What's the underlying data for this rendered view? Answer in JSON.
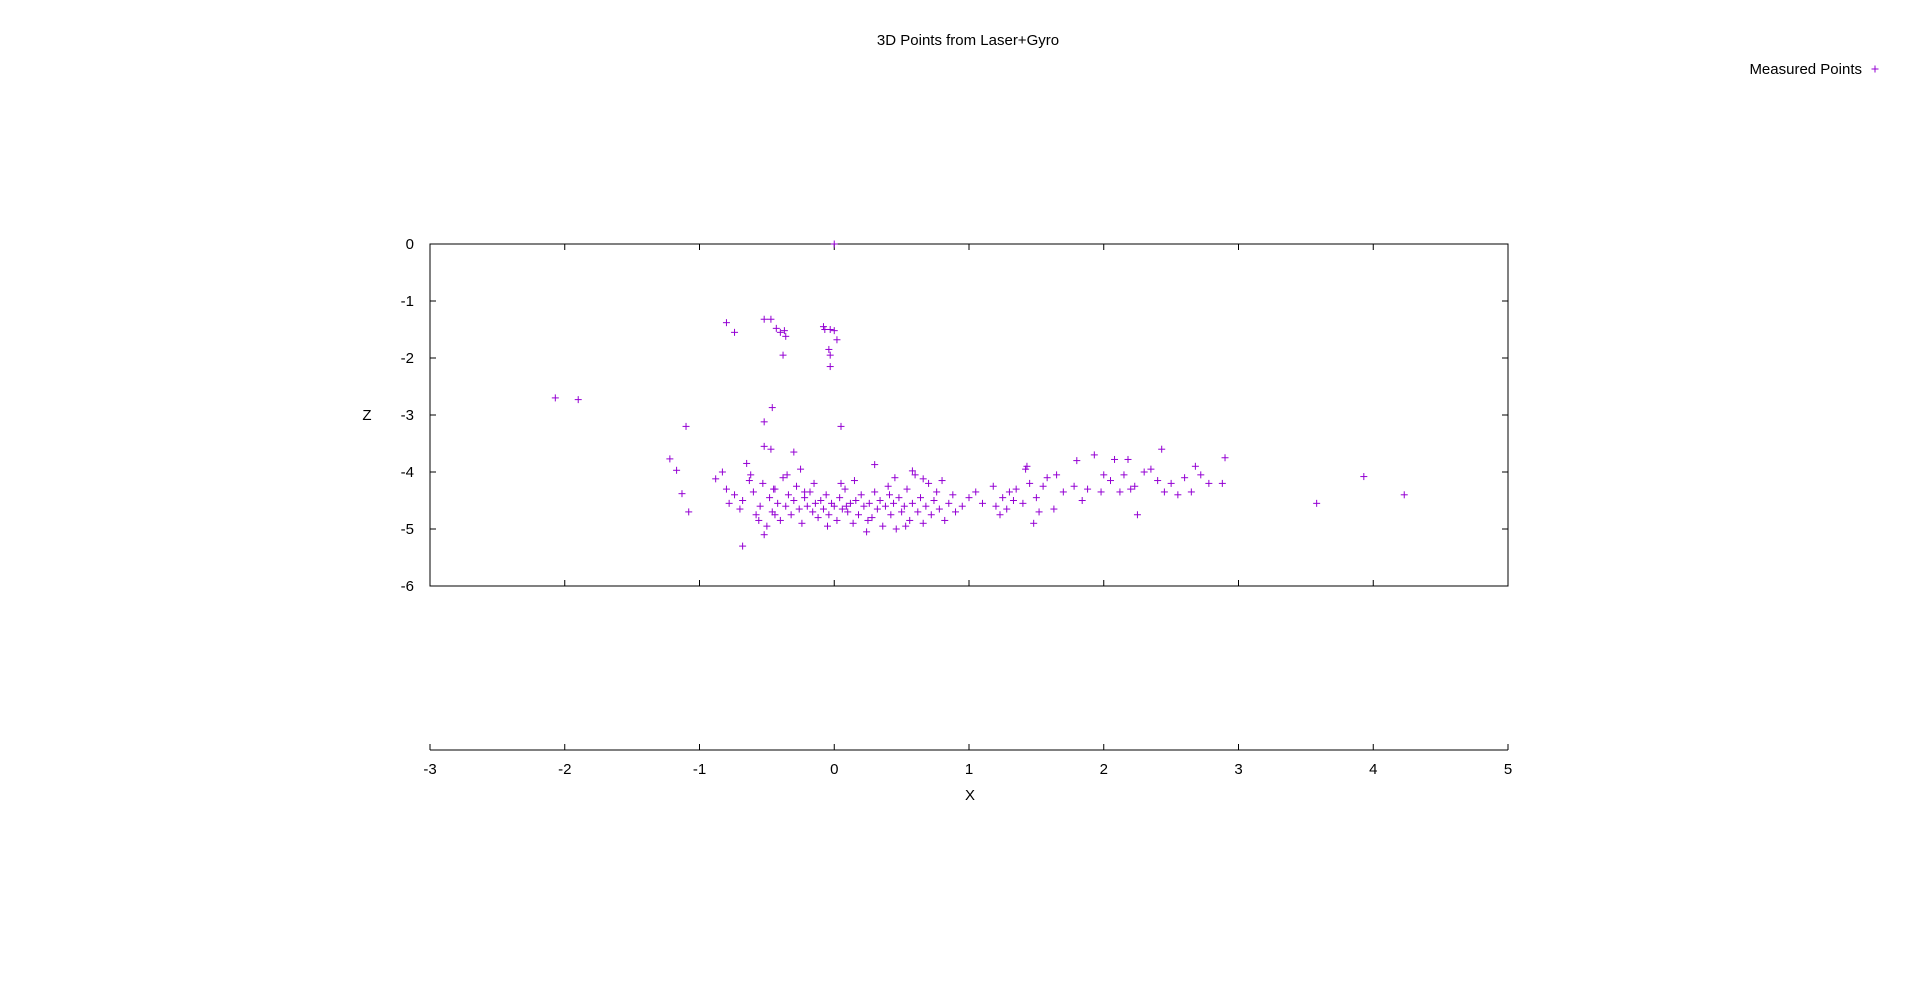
{
  "chart_data": {
    "type": "scatter",
    "title": "3D Points from Laser+Gyro",
    "xlabel": "X",
    "ylabel": "Z",
    "xlim": [
      -3,
      5
    ],
    "ylim": [
      -6,
      0
    ],
    "x_ticks": [
      "-3",
      "-2",
      "-1",
      "0",
      "1",
      "2",
      "3",
      "4",
      "5"
    ],
    "y_ticks": [
      "0",
      "-1",
      "-2",
      "-3",
      "-4",
      "-5",
      "-6"
    ],
    "legend_position": "top-right",
    "marker": "plus",
    "color": "#9400d3",
    "series": [
      {
        "name": "Measured Points",
        "points": [
          [
            0.0,
            0.0
          ],
          [
            -0.8,
            -1.38
          ],
          [
            -0.74,
            -1.55
          ],
          [
            -0.52,
            -1.32
          ],
          [
            -0.47,
            -1.32
          ],
          [
            -0.43,
            -1.48
          ],
          [
            -0.4,
            -1.55
          ],
          [
            -0.37,
            -1.52
          ],
          [
            -0.36,
            -1.62
          ],
          [
            -0.38,
            -1.95
          ],
          [
            -0.08,
            -1.45
          ],
          [
            -0.07,
            -1.5
          ],
          [
            -0.03,
            -1.5
          ],
          [
            0.0,
            -1.52
          ],
          [
            0.02,
            -1.68
          ],
          [
            -0.04,
            -1.85
          ],
          [
            -0.03,
            -1.95
          ],
          [
            -0.03,
            -2.15
          ],
          [
            -2.07,
            -2.7
          ],
          [
            -1.9,
            -2.73
          ],
          [
            -1.1,
            -3.2
          ],
          [
            -0.46,
            -2.87
          ],
          [
            0.05,
            -3.2
          ],
          [
            -0.52,
            -3.12
          ],
          [
            -0.52,
            -3.55
          ],
          [
            -0.47,
            -3.6
          ],
          [
            -0.3,
            -3.65
          ],
          [
            -1.22,
            -3.77
          ],
          [
            -1.17,
            -3.97
          ],
          [
            -1.13,
            -4.38
          ],
          [
            -1.08,
            -4.7
          ],
          [
            -0.88,
            -4.12
          ],
          [
            -0.83,
            -4.0
          ],
          [
            -0.8,
            -4.3
          ],
          [
            -0.78,
            -4.55
          ],
          [
            -0.74,
            -4.4
          ],
          [
            -0.7,
            -4.65
          ],
          [
            -0.68,
            -4.5
          ],
          [
            -0.65,
            -3.85
          ],
          [
            -0.63,
            -4.15
          ],
          [
            -0.6,
            -4.35
          ],
          [
            -0.58,
            -4.75
          ],
          [
            -0.55,
            -4.6
          ],
          [
            -0.53,
            -4.2
          ],
          [
            -0.5,
            -4.95
          ],
          [
            -0.48,
            -4.45
          ],
          [
            -0.46,
            -4.7
          ],
          [
            -0.44,
            -4.3
          ],
          [
            -0.42,
            -4.55
          ],
          [
            -0.4,
            -4.85
          ],
          [
            -0.38,
            -4.1
          ],
          [
            -0.36,
            -4.6
          ],
          [
            -0.34,
            -4.4
          ],
          [
            -0.32,
            -4.75
          ],
          [
            -0.3,
            -4.5
          ],
          [
            -0.28,
            -4.25
          ],
          [
            -0.26,
            -4.65
          ],
          [
            -0.24,
            -4.9
          ],
          [
            -0.22,
            -4.45
          ],
          [
            -0.2,
            -4.6
          ],
          [
            -0.18,
            -4.35
          ],
          [
            -0.16,
            -4.7
          ],
          [
            -0.14,
            -4.55
          ],
          [
            -0.12,
            -4.8
          ],
          [
            -0.1,
            -4.5
          ],
          [
            -0.08,
            -4.65
          ],
          [
            -0.06,
            -4.4
          ],
          [
            -0.04,
            -4.75
          ],
          [
            -0.02,
            -4.55
          ],
          [
            0.0,
            -4.6
          ],
          [
            0.02,
            -4.85
          ],
          [
            0.04,
            -4.45
          ],
          [
            0.06,
            -4.65
          ],
          [
            0.08,
            -4.3
          ],
          [
            0.1,
            -4.7
          ],
          [
            0.12,
            -4.55
          ],
          [
            0.14,
            -4.9
          ],
          [
            0.16,
            -4.5
          ],
          [
            0.18,
            -4.75
          ],
          [
            0.2,
            -4.4
          ],
          [
            0.22,
            -4.6
          ],
          [
            0.24,
            -5.05
          ],
          [
            0.26,
            -4.55
          ],
          [
            0.28,
            -4.8
          ],
          [
            0.3,
            -4.35
          ],
          [
            0.32,
            -4.65
          ],
          [
            0.34,
            -4.5
          ],
          [
            0.36,
            -4.95
          ],
          [
            0.38,
            -4.6
          ],
          [
            0.4,
            -4.25
          ],
          [
            0.42,
            -4.75
          ],
          [
            0.44,
            -4.55
          ],
          [
            0.46,
            -5.0
          ],
          [
            0.48,
            -4.45
          ],
          [
            0.5,
            -4.7
          ],
          [
            0.52,
            -4.6
          ],
          [
            0.54,
            -4.3
          ],
          [
            0.56,
            -4.85
          ],
          [
            0.58,
            -4.55
          ],
          [
            0.6,
            -4.05
          ],
          [
            0.62,
            -4.7
          ],
          [
            0.64,
            -4.45
          ],
          [
            0.66,
            -4.9
          ],
          [
            0.68,
            -4.6
          ],
          [
            0.7,
            -4.2
          ],
          [
            0.72,
            -4.75
          ],
          [
            0.74,
            -4.5
          ],
          [
            0.76,
            -4.35
          ],
          [
            0.78,
            -4.65
          ],
          [
            0.8,
            -4.15
          ],
          [
            0.82,
            -4.85
          ],
          [
            0.85,
            -4.55
          ],
          [
            0.88,
            -4.4
          ],
          [
            0.9,
            -4.7
          ],
          [
            -0.62,
            -4.05
          ],
          [
            -0.56,
            -4.85
          ],
          [
            -0.52,
            -5.1
          ],
          [
            -0.68,
            -5.3
          ],
          [
            -0.45,
            -4.3
          ],
          [
            -0.35,
            -4.05
          ],
          [
            -0.25,
            -3.95
          ],
          [
            -0.15,
            -4.2
          ],
          [
            0.05,
            -4.2
          ],
          [
            0.15,
            -4.15
          ],
          [
            0.3,
            -3.87
          ],
          [
            0.45,
            -4.1
          ],
          [
            0.58,
            -3.98
          ],
          [
            0.66,
            -4.12
          ],
          [
            -0.44,
            -4.75
          ],
          [
            -0.22,
            -4.35
          ],
          [
            0.09,
            -4.6
          ],
          [
            0.25,
            -4.85
          ],
          [
            0.41,
            -4.4
          ],
          [
            0.53,
            -4.95
          ],
          [
            -0.05,
            -4.95
          ],
          [
            0.95,
            -4.6
          ],
          [
            1.0,
            -4.45
          ],
          [
            1.05,
            -4.35
          ],
          [
            1.1,
            -4.55
          ],
          [
            1.18,
            -4.25
          ],
          [
            1.2,
            -4.6
          ],
          [
            1.23,
            -4.75
          ],
          [
            1.25,
            -4.45
          ],
          [
            1.28,
            -4.65
          ],
          [
            1.3,
            -4.35
          ],
          [
            1.33,
            -4.5
          ],
          [
            1.35,
            -4.3
          ],
          [
            1.4,
            -4.55
          ],
          [
            1.42,
            -3.95
          ],
          [
            1.43,
            -3.9
          ],
          [
            1.45,
            -4.2
          ],
          [
            1.48,
            -4.9
          ],
          [
            1.5,
            -4.45
          ],
          [
            1.52,
            -4.7
          ],
          [
            1.55,
            -4.25
          ],
          [
            1.58,
            -4.1
          ],
          [
            1.63,
            -4.65
          ],
          [
            1.65,
            -4.05
          ],
          [
            1.7,
            -4.35
          ],
          [
            1.78,
            -4.25
          ],
          [
            1.8,
            -3.8
          ],
          [
            1.84,
            -4.5
          ],
          [
            1.88,
            -4.3
          ],
          [
            1.93,
            -3.7
          ],
          [
            1.98,
            -4.35
          ],
          [
            2.0,
            -4.05
          ],
          [
            2.05,
            -4.15
          ],
          [
            2.08,
            -3.78
          ],
          [
            2.12,
            -4.35
          ],
          [
            2.15,
            -4.05
          ],
          [
            2.18,
            -3.78
          ],
          [
            2.2,
            -4.3
          ],
          [
            2.23,
            -4.25
          ],
          [
            2.25,
            -4.75
          ],
          [
            2.3,
            -4.0
          ],
          [
            2.35,
            -3.95
          ],
          [
            2.4,
            -4.15
          ],
          [
            2.43,
            -3.6
          ],
          [
            2.45,
            -4.35
          ],
          [
            2.5,
            -4.2
          ],
          [
            2.55,
            -4.4
          ],
          [
            2.6,
            -4.1
          ],
          [
            2.65,
            -4.35
          ],
          [
            2.68,
            -3.9
          ],
          [
            2.72,
            -4.05
          ],
          [
            2.78,
            -4.2
          ],
          [
            2.88,
            -4.2
          ],
          [
            2.9,
            -3.75
          ],
          [
            3.58,
            -4.55
          ],
          [
            3.93,
            -4.08
          ],
          [
            4.23,
            -4.4
          ]
        ]
      }
    ]
  }
}
